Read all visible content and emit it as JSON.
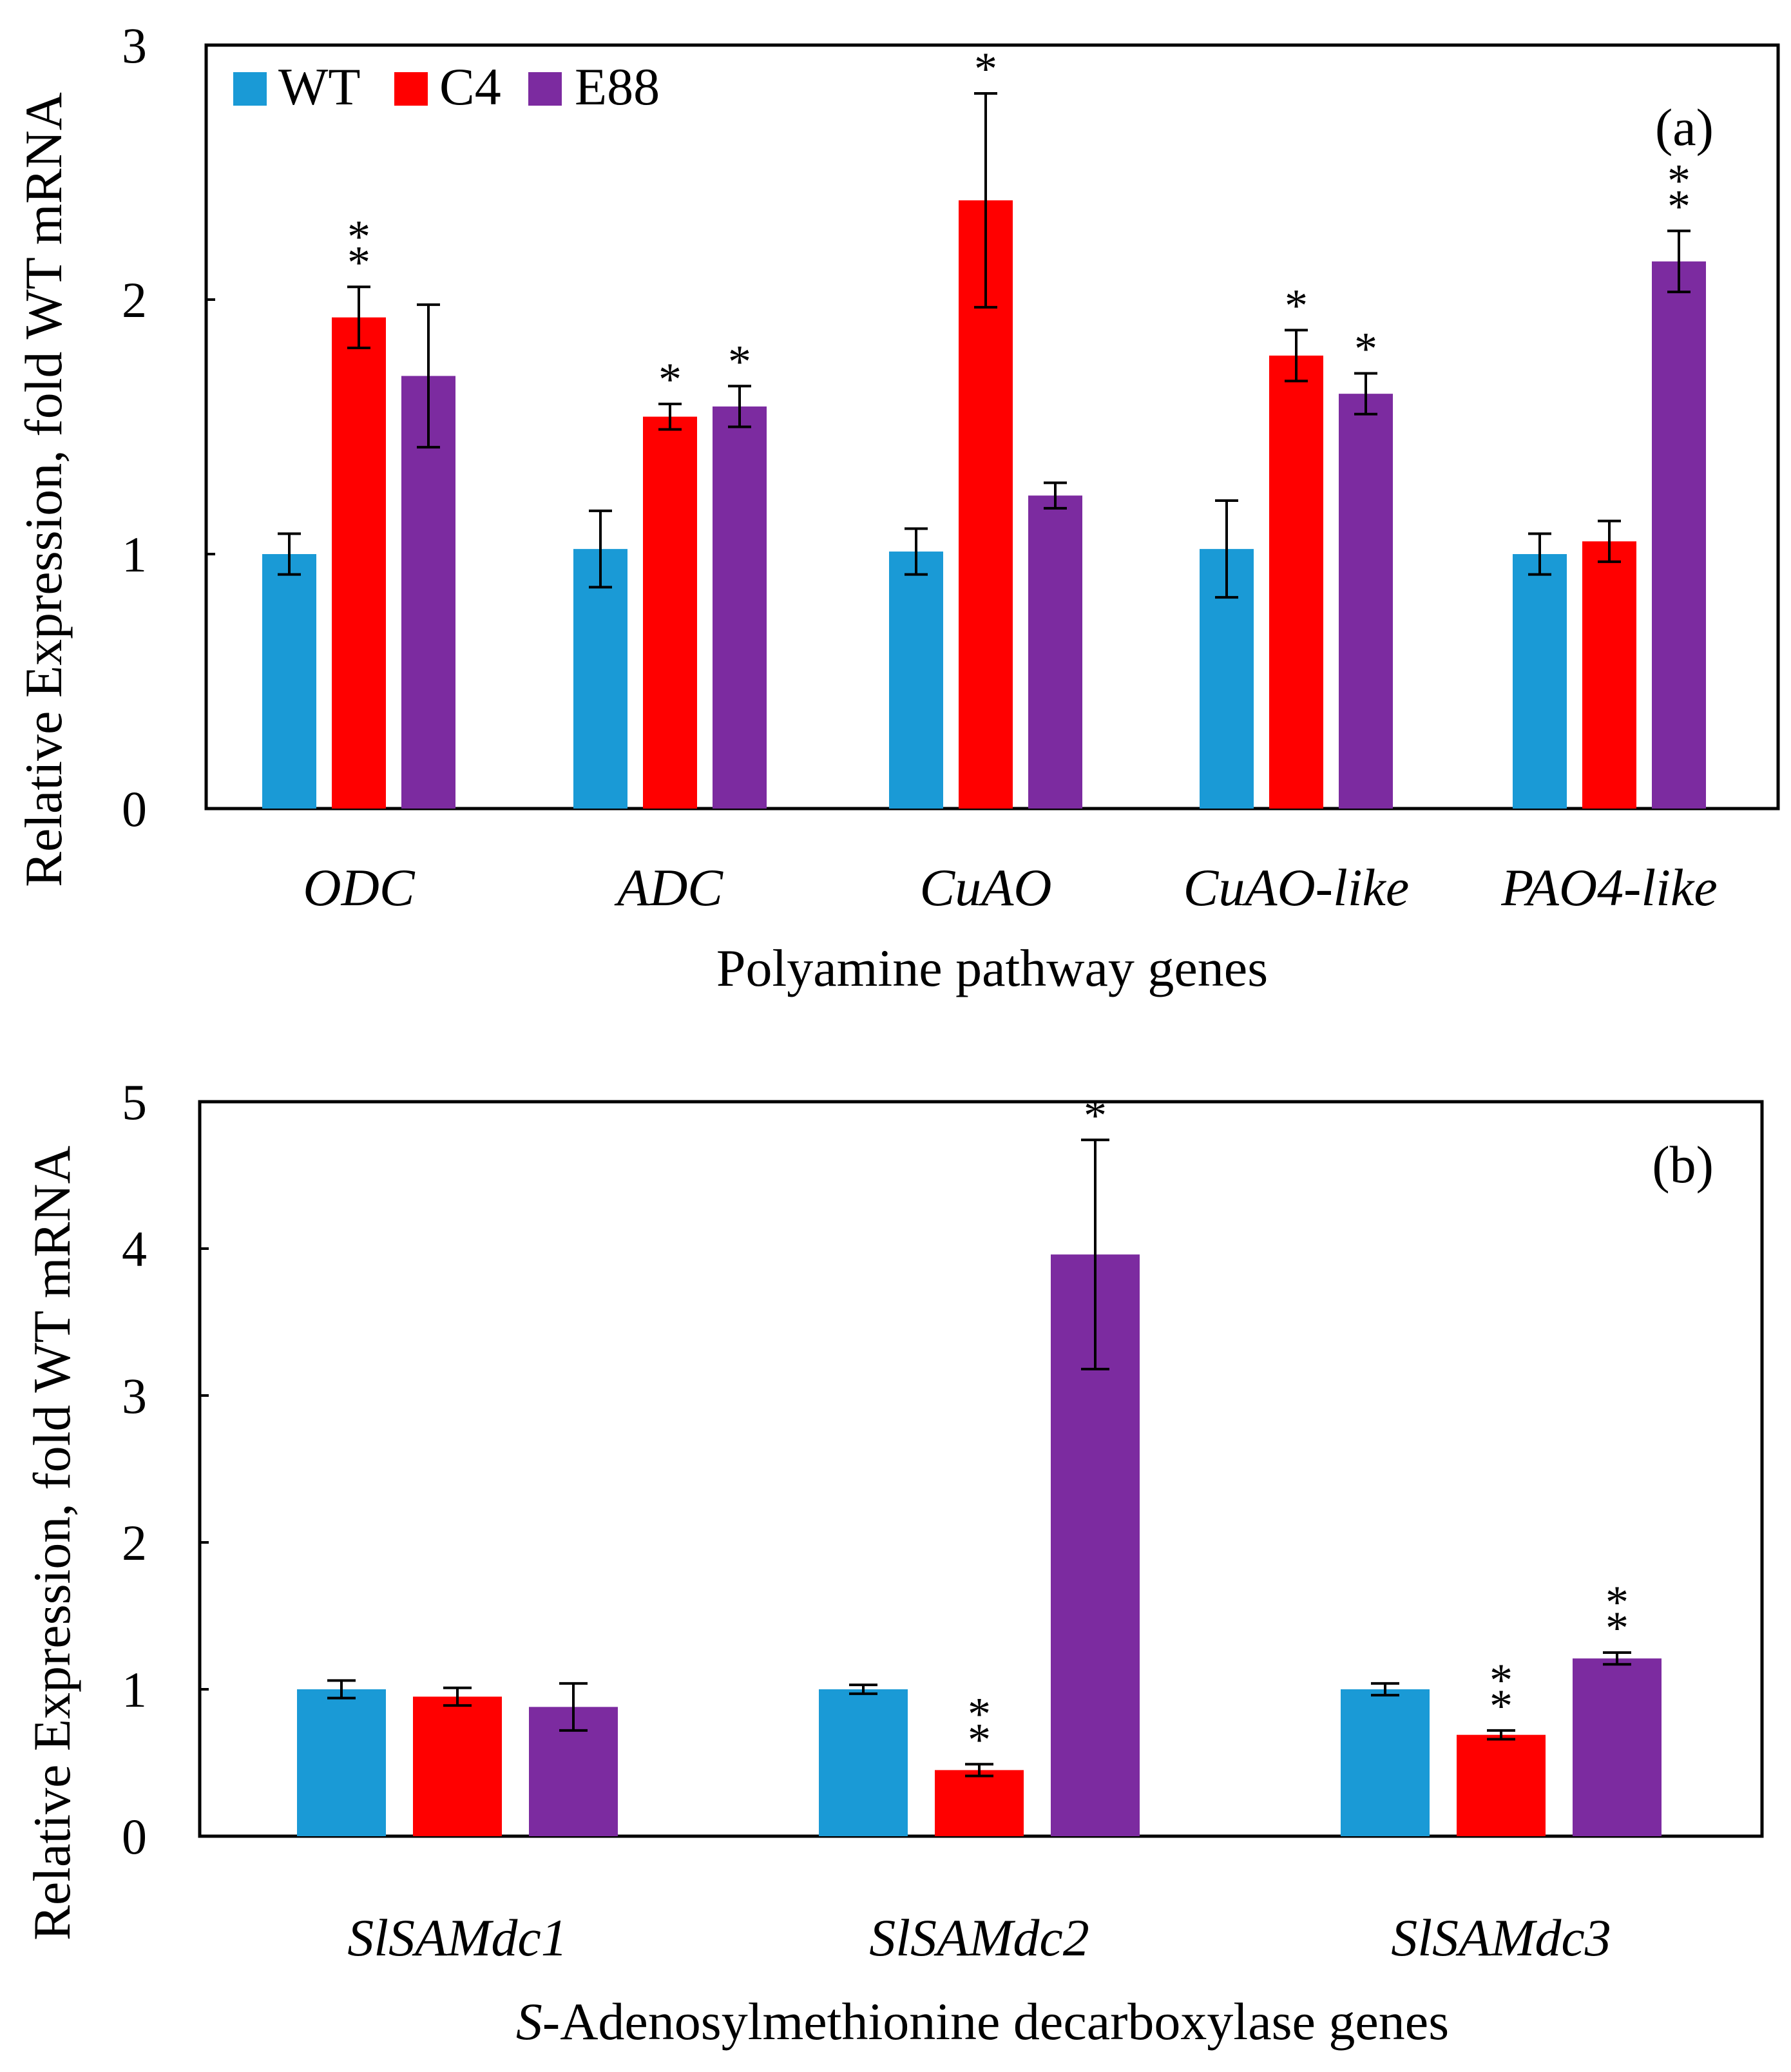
{
  "legend": [
    {
      "name": "WT",
      "color": "#1a9ad6"
    },
    {
      "name": "C4",
      "color": "#ff0000"
    },
    {
      "name": "E88",
      "color": "#7c2ba0"
    }
  ],
  "chart_data": [
    {
      "type": "bar",
      "panel_label": "(a)",
      "categories": [
        "ODC",
        "ADC",
        "CuAO",
        "CuAO-like",
        "PAO4-like"
      ],
      "series": [
        {
          "name": "WT",
          "values": [
            1.0,
            1.02,
            1.01,
            1.02,
            1.0
          ],
          "errors": [
            0.08,
            0.15,
            0.09,
            0.19,
            0.08
          ]
        },
        {
          "name": "C4",
          "values": [
            1.93,
            1.54,
            2.39,
            1.78,
            1.05
          ],
          "errors": [
            0.12,
            0.05,
            0.42,
            0.1,
            0.08
          ]
        },
        {
          "name": "E88",
          "values": [
            1.7,
            1.58,
            1.23,
            1.63,
            2.15
          ],
          "errors": [
            0.28,
            0.08,
            0.05,
            0.08,
            0.12
          ]
        }
      ],
      "significance": [
        [
          "",
          "",
          "",
          "",
          ""
        ],
        [
          "**",
          "*",
          "*",
          "*",
          ""
        ],
        [
          "",
          "*",
          "",
          "*",
          "**"
        ]
      ],
      "xlabel": "Polyamine pathway genes",
      "ylabel": "Relative Expression, fold WT mRNA",
      "ylim": [
        0,
        3
      ],
      "yticks": [
        0,
        1,
        2,
        3
      ],
      "legend_position": "top-left"
    },
    {
      "type": "bar",
      "panel_label": "(b)",
      "categories": [
        "SlSAMdc1",
        "SlSAMdc2",
        "SlSAMdc3"
      ],
      "series": [
        {
          "name": "WT",
          "values": [
            1.0,
            1.0,
            1.0
          ],
          "errors": [
            0.06,
            0.03,
            0.04
          ]
        },
        {
          "name": "C4",
          "values": [
            0.95,
            0.45,
            0.69
          ],
          "errors": [
            0.06,
            0.04,
            0.03
          ]
        },
        {
          "name": "E88",
          "values": [
            0.88,
            3.96,
            1.21
          ],
          "errors": [
            0.16,
            0.78,
            0.04
          ]
        }
      ],
      "significance": [
        [
          "",
          "",
          ""
        ],
        [
          "",
          "**",
          "**"
        ],
        [
          "",
          "*",
          "**"
        ]
      ],
      "xlabel_italic_prefix": "S",
      "xlabel_rest": "-Adenosylmethionine decarboxylase genes",
      "ylabel": "Relative Expression, fold WT mRNA",
      "ylim": [
        0,
        5
      ],
      "yticks": [
        0,
        1,
        2,
        3,
        4,
        5
      ]
    }
  ]
}
